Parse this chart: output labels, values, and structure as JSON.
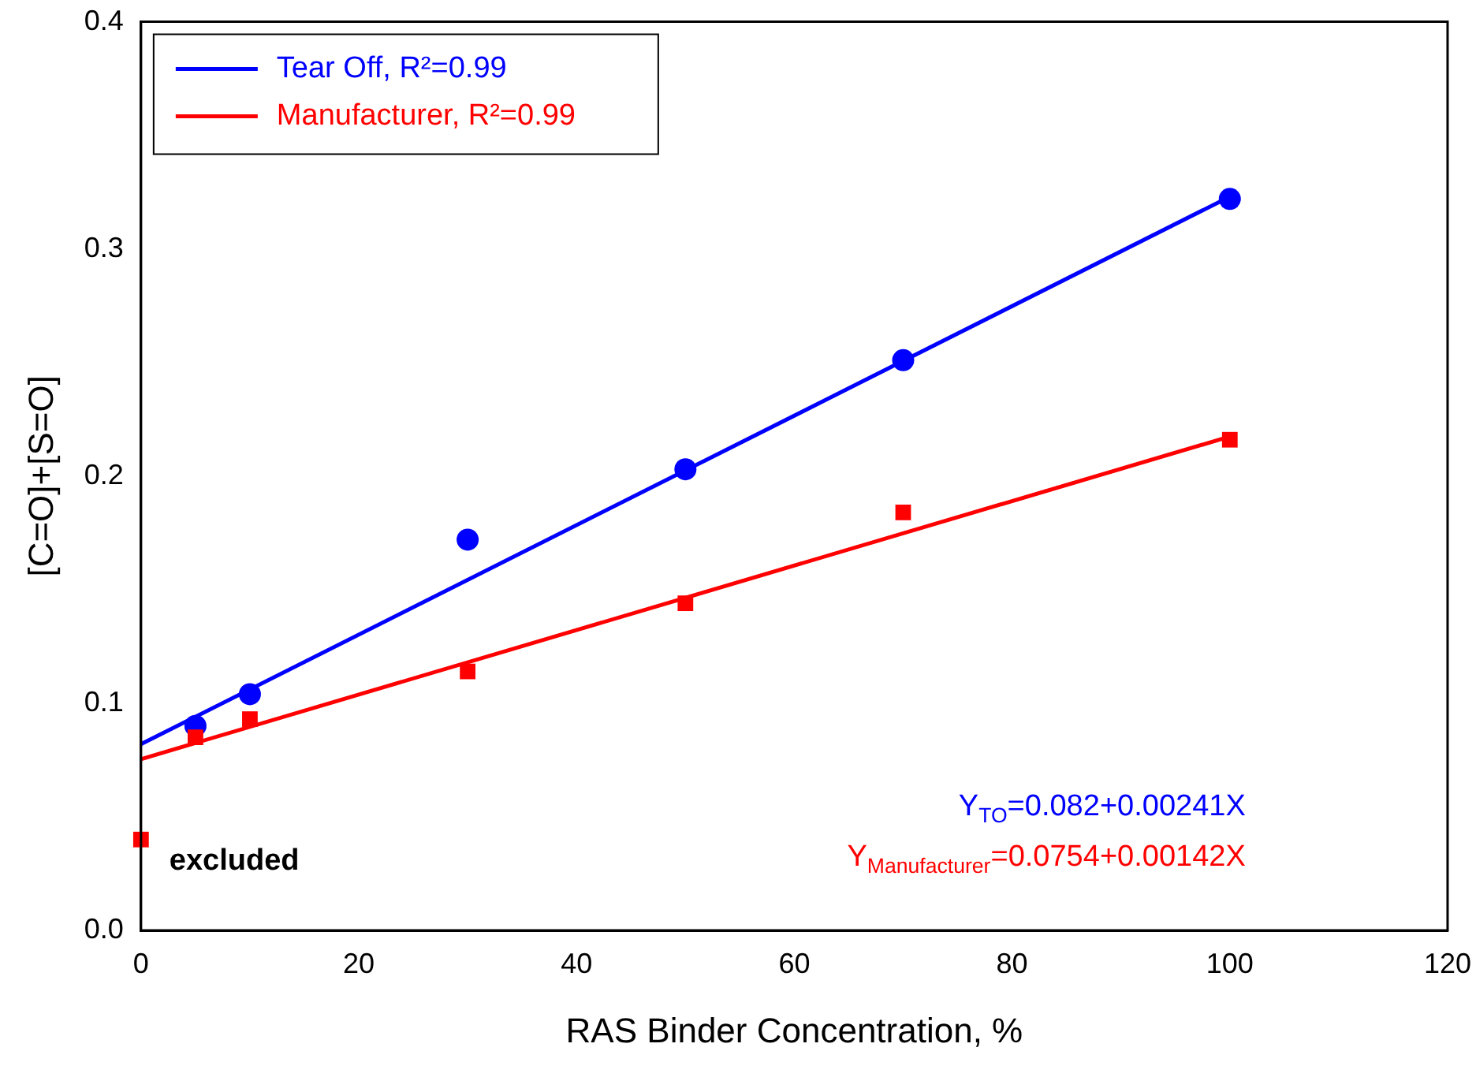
{
  "chart_data": {
    "type": "scatter",
    "xlabel": "RAS Binder Concentration, %",
    "ylabel": "[C=O]+[S=O]",
    "xlim": [
      0,
      120
    ],
    "xticks": [
      0,
      20,
      40,
      60,
      80,
      100,
      120
    ],
    "ylim": [
      0,
      0.4
    ],
    "yticks": [
      {
        "value": 0,
        "label": "0.0"
      },
      0.1,
      0.2,
      0.3,
      0.4
    ],
    "grid": false,
    "legend": "top left",
    "series": [
      {
        "type": "scatter",
        "color": "#0000ff",
        "marker": "circle",
        "x": [
          5,
          10,
          30,
          50,
          70,
          100
        ],
        "values": [
          0.09,
          0.104,
          0.172,
          0.203,
          0.251,
          0.322
        ]
      },
      {
        "type": "scatter",
        "color": "#ff0000",
        "marker": "square",
        "x": [
          0,
          5,
          10,
          30,
          50,
          70,
          100
        ],
        "values": [
          0.04,
          0.085,
          0.093,
          0.114,
          0.144,
          0.184,
          0.216
        ]
      },
      {
        "type": "line",
        "name": "Tear Off, R²=0.99",
        "color": "#0000ff",
        "marker": "none",
        "line_style": "solid",
        "x": [
          0,
          100
        ],
        "values": [
          0.082,
          0.323
        ]
      },
      {
        "type": "line",
        "name": "Manufacturer, R²=0.99",
        "color": "#ff0000",
        "marker": "none",
        "line_style": "solid",
        "x": [
          0,
          100
        ],
        "values": [
          0.0754,
          0.2174
        ]
      }
    ],
    "annotations": [
      {
        "text": "excluded",
        "x": 0,
        "y": 0.04
      },
      "Y$_{TO}$=0.082+0.00241X",
      "Y$_{Manufacturer}$=0.0754+0.00142X"
    ]
  }
}
